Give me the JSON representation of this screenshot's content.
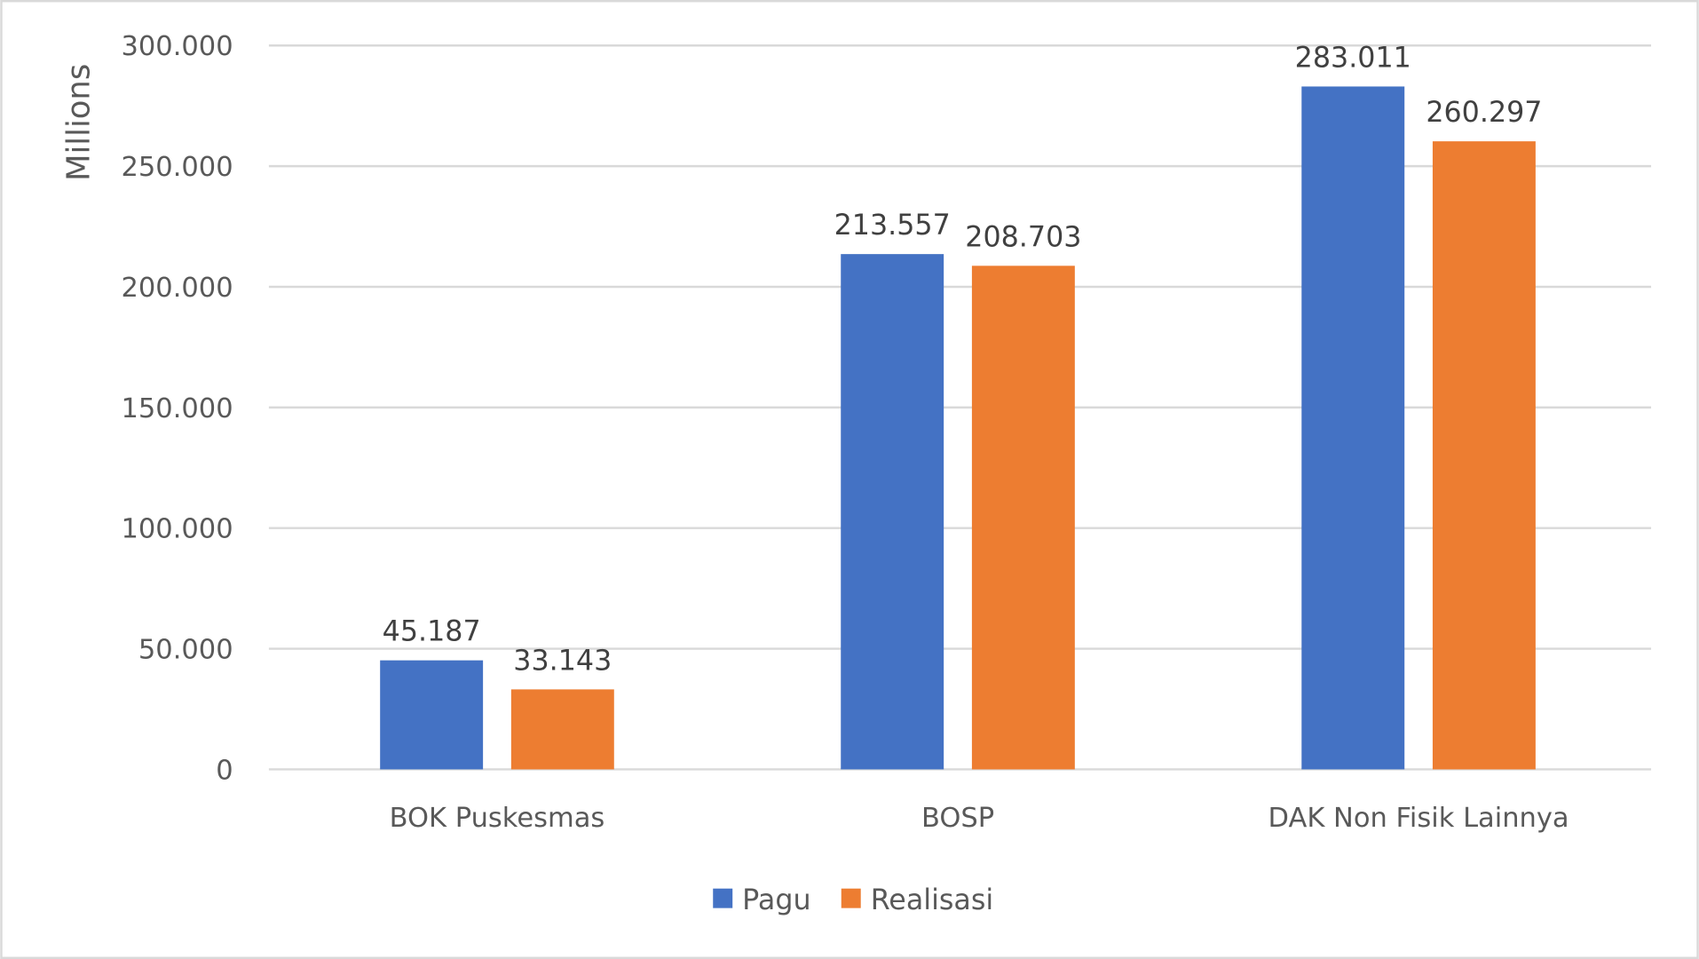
{
  "chart_data": {
    "type": "bar",
    "title": "",
    "xlabel": "",
    "ylabel": "Millions",
    "ylim": [
      0,
      300000
    ],
    "yticks": [
      0,
      50000,
      100000,
      150000,
      200000,
      250000,
      300000
    ],
    "ytick_labels": [
      "0",
      "50.000",
      "100.000",
      "150.000",
      "200.000",
      "250.000",
      "300.000"
    ],
    "grid": true,
    "legend_position": "bottom",
    "categories": [
      "BOK Puskesmas",
      "BOSP",
      "DAK Non Fisik Lainnya"
    ],
    "series": [
      {
        "name": "Pagu",
        "color": "#4472C4",
        "values": [
          45187,
          213557,
          283011
        ],
        "labels": [
          "45.187",
          "213.557",
          "283.011"
        ]
      },
      {
        "name": "Realisasi",
        "color": "#ED7D31",
        "values": [
          33143,
          208703,
          260297
        ],
        "labels": [
          "33.143",
          "208.703",
          "260.297"
        ]
      }
    ]
  }
}
